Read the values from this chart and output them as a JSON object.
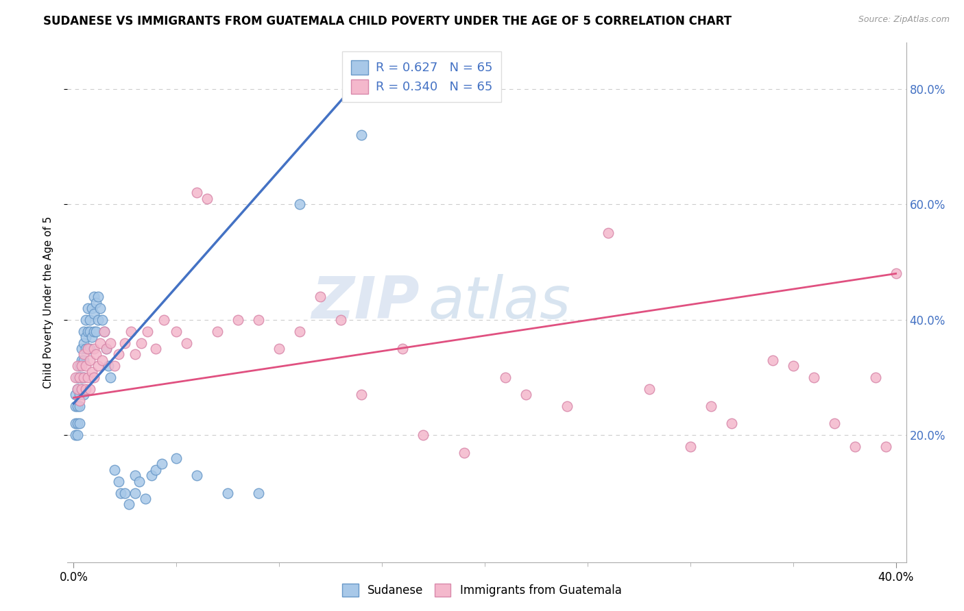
{
  "title": "SUDANESE VS IMMIGRANTS FROM GUATEMALA CHILD POVERTY UNDER THE AGE OF 5 CORRELATION CHART",
  "source": "Source: ZipAtlas.com",
  "ylabel": "Child Poverty Under the Age of 5",
  "R1": 0.627,
  "N1": 65,
  "R2": 0.34,
  "N2": 65,
  "color1": "#a8c8e8",
  "color2": "#f4b8cc",
  "line_color1": "#4472c4",
  "line_color2": "#e05080",
  "watermark_zip": "ZIP",
  "watermark_atlas": "atlas",
  "legend_label1": "Sudanese",
  "legend_label2": "Immigrants from Guatemala",
  "xlim": [
    -0.003,
    0.405
  ],
  "ylim": [
    -0.02,
    0.88
  ],
  "x_ticks": [
    0.0,
    0.4
  ],
  "y_ticks": [
    0.2,
    0.4,
    0.6,
    0.8
  ],
  "sudanese_x": [
    0.001,
    0.001,
    0.001,
    0.001,
    0.002,
    0.002,
    0.002,
    0.002,
    0.002,
    0.003,
    0.003,
    0.003,
    0.003,
    0.003,
    0.004,
    0.004,
    0.004,
    0.004,
    0.005,
    0.005,
    0.005,
    0.005,
    0.005,
    0.006,
    0.006,
    0.006,
    0.007,
    0.007,
    0.007,
    0.008,
    0.008,
    0.008,
    0.009,
    0.009,
    0.01,
    0.01,
    0.01,
    0.011,
    0.011,
    0.012,
    0.012,
    0.013,
    0.014,
    0.015,
    0.016,
    0.017,
    0.018,
    0.02,
    0.022,
    0.023,
    0.025,
    0.027,
    0.03,
    0.03,
    0.032,
    0.035,
    0.038,
    0.04,
    0.043,
    0.05,
    0.06,
    0.075,
    0.09,
    0.11,
    0.14
  ],
  "sudanese_y": [
    0.25,
    0.27,
    0.22,
    0.2,
    0.3,
    0.28,
    0.25,
    0.22,
    0.2,
    0.32,
    0.3,
    0.27,
    0.25,
    0.22,
    0.35,
    0.33,
    0.3,
    0.28,
    0.38,
    0.36,
    0.33,
    0.3,
    0.27,
    0.4,
    0.37,
    0.35,
    0.42,
    0.38,
    0.35,
    0.4,
    0.38,
    0.35,
    0.42,
    0.37,
    0.44,
    0.41,
    0.38,
    0.43,
    0.38,
    0.44,
    0.4,
    0.42,
    0.4,
    0.38,
    0.35,
    0.32,
    0.3,
    0.14,
    0.12,
    0.1,
    0.1,
    0.08,
    0.13,
    0.1,
    0.12,
    0.09,
    0.13,
    0.14,
    0.15,
    0.16,
    0.13,
    0.1,
    0.1,
    0.6,
    0.72
  ],
  "guatemala_x": [
    0.001,
    0.002,
    0.002,
    0.003,
    0.003,
    0.004,
    0.004,
    0.005,
    0.005,
    0.006,
    0.006,
    0.007,
    0.007,
    0.008,
    0.008,
    0.009,
    0.01,
    0.01,
    0.011,
    0.012,
    0.013,
    0.014,
    0.015,
    0.016,
    0.018,
    0.02,
    0.022,
    0.025,
    0.028,
    0.03,
    0.033,
    0.036,
    0.04,
    0.044,
    0.05,
    0.055,
    0.06,
    0.065,
    0.07,
    0.08,
    0.09,
    0.1,
    0.11,
    0.12,
    0.13,
    0.14,
    0.16,
    0.17,
    0.19,
    0.21,
    0.22,
    0.24,
    0.26,
    0.28,
    0.3,
    0.31,
    0.32,
    0.34,
    0.35,
    0.36,
    0.37,
    0.38,
    0.39,
    0.395,
    0.4
  ],
  "guatemala_y": [
    0.3,
    0.28,
    0.32,
    0.3,
    0.26,
    0.32,
    0.28,
    0.34,
    0.3,
    0.32,
    0.28,
    0.35,
    0.3,
    0.33,
    0.28,
    0.31,
    0.35,
    0.3,
    0.34,
    0.32,
    0.36,
    0.33,
    0.38,
    0.35,
    0.36,
    0.32,
    0.34,
    0.36,
    0.38,
    0.34,
    0.36,
    0.38,
    0.35,
    0.4,
    0.38,
    0.36,
    0.62,
    0.61,
    0.38,
    0.4,
    0.4,
    0.35,
    0.38,
    0.44,
    0.4,
    0.27,
    0.35,
    0.2,
    0.17,
    0.3,
    0.27,
    0.25,
    0.55,
    0.28,
    0.18,
    0.25,
    0.22,
    0.33,
    0.32,
    0.3,
    0.22,
    0.18,
    0.3,
    0.18,
    0.48
  ],
  "blue_line_x": [
    0.0,
    0.14
  ],
  "blue_line_y": [
    0.255,
    0.82
  ],
  "pink_line_x": [
    0.0,
    0.4
  ],
  "pink_line_y": [
    0.265,
    0.48
  ]
}
